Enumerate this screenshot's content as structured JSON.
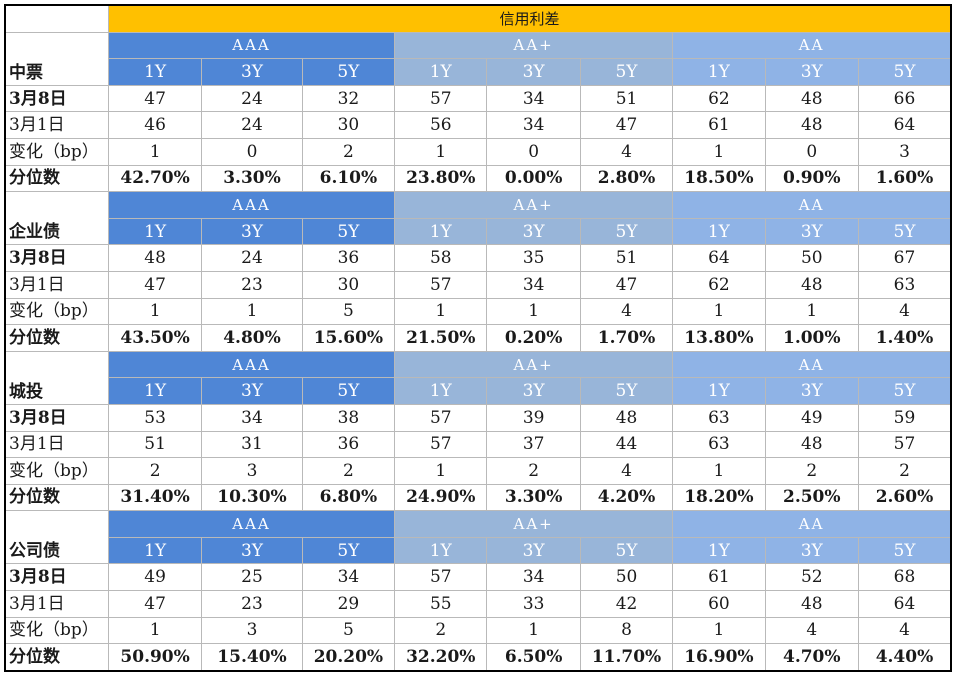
{
  "title": "信用利差",
  "grades": [
    "AAA",
    "AA+",
    "AA"
  ],
  "tenors": [
    "1Y",
    "3Y",
    "5Y"
  ],
  "row_labels": {
    "current": "3月8日",
    "previous": "3月1日",
    "change": "变化（bp）",
    "percentile": "分位数"
  },
  "sections": [
    {
      "name": "中票",
      "current": [
        "47",
        "24",
        "32",
        "57",
        "34",
        "51",
        "62",
        "48",
        "66"
      ],
      "previous": [
        "46",
        "24",
        "30",
        "56",
        "34",
        "47",
        "61",
        "48",
        "64"
      ],
      "change": [
        "1",
        "0",
        "2",
        "1",
        "0",
        "4",
        "1",
        "0",
        "3"
      ],
      "percentile": [
        "42.70%",
        "3.30%",
        "6.10%",
        "23.80%",
        "0.00%",
        "2.80%",
        "18.50%",
        "0.90%",
        "1.60%"
      ]
    },
    {
      "name": "企业债",
      "current": [
        "48",
        "24",
        "36",
        "58",
        "35",
        "51",
        "64",
        "50",
        "67"
      ],
      "previous": [
        "47",
        "23",
        "30",
        "57",
        "34",
        "47",
        "62",
        "48",
        "63"
      ],
      "change": [
        "1",
        "1",
        "5",
        "1",
        "1",
        "4",
        "1",
        "1",
        "4"
      ],
      "percentile": [
        "43.50%",
        "4.80%",
        "15.60%",
        "21.50%",
        "0.20%",
        "1.70%",
        "13.80%",
        "1.00%",
        "1.40%"
      ]
    },
    {
      "name": "城投",
      "current": [
        "53",
        "34",
        "38",
        "57",
        "39",
        "48",
        "63",
        "49",
        "59"
      ],
      "previous": [
        "51",
        "31",
        "36",
        "57",
        "37",
        "44",
        "63",
        "48",
        "57"
      ],
      "change": [
        "2",
        "3",
        "2",
        "1",
        "2",
        "4",
        "1",
        "2",
        "2"
      ],
      "percentile": [
        "31.40%",
        "10.30%",
        "6.80%",
        "24.90%",
        "3.30%",
        "4.20%",
        "18.20%",
        "2.50%",
        "2.60%"
      ]
    },
    {
      "name": "公司债",
      "current": [
        "49",
        "25",
        "34",
        "57",
        "34",
        "50",
        "61",
        "52",
        "68"
      ],
      "previous": [
        "47",
        "23",
        "29",
        "55",
        "33",
        "42",
        "60",
        "48",
        "64"
      ],
      "change": [
        "1",
        "3",
        "5",
        "2",
        "1",
        "8",
        "1",
        "4",
        "4"
      ],
      "percentile": [
        "50.90%",
        "15.40%",
        "20.20%",
        "32.20%",
        "6.50%",
        "11.70%",
        "16.90%",
        "4.70%",
        "4.40%"
      ]
    }
  ],
  "colors": {
    "title_bg": "#ffc000",
    "aaa_header": "#4f86d6",
    "aa_plus_header": "#98b5d9",
    "aa_header": "#8fb3e6"
  }
}
